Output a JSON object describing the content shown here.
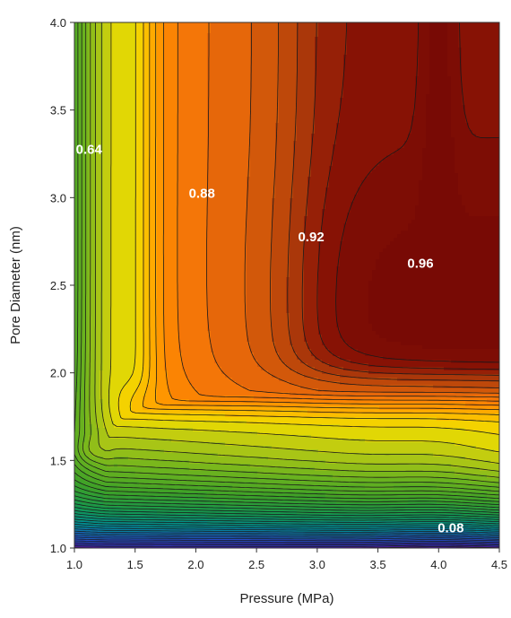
{
  "chart_data": {
    "type": "contour",
    "title": "",
    "xlabel": "Pressure (MPa)",
    "ylabel": "Pore Diameter (nm)",
    "xlim": [
      1.0,
      4.5
    ],
    "ylim": [
      1.0,
      4.0
    ],
    "x_ticks": [
      "1.0",
      "1.5",
      "2.0",
      "2.5",
      "3.0",
      "3.5",
      "4.0",
      "4.5"
    ],
    "y_ticks": [
      "1.0",
      "1.5",
      "2.0",
      "2.5",
      "3.0",
      "3.5",
      "4.0"
    ],
    "colormap": "purple-blue-green-yellow-orange-darkred",
    "grid": false,
    "contour_labels": [
      {
        "text": "0.64",
        "x": 1.12,
        "y": 3.25
      },
      {
        "text": "0.88",
        "x": 2.05,
        "y": 3.0
      },
      {
        "text": "0.92",
        "x": 2.95,
        "y": 2.75
      },
      {
        "text": "0.96",
        "x": 3.85,
        "y": 2.6
      },
      {
        "text": "0.08",
        "x": 4.1,
        "y": 1.09
      }
    ]
  }
}
